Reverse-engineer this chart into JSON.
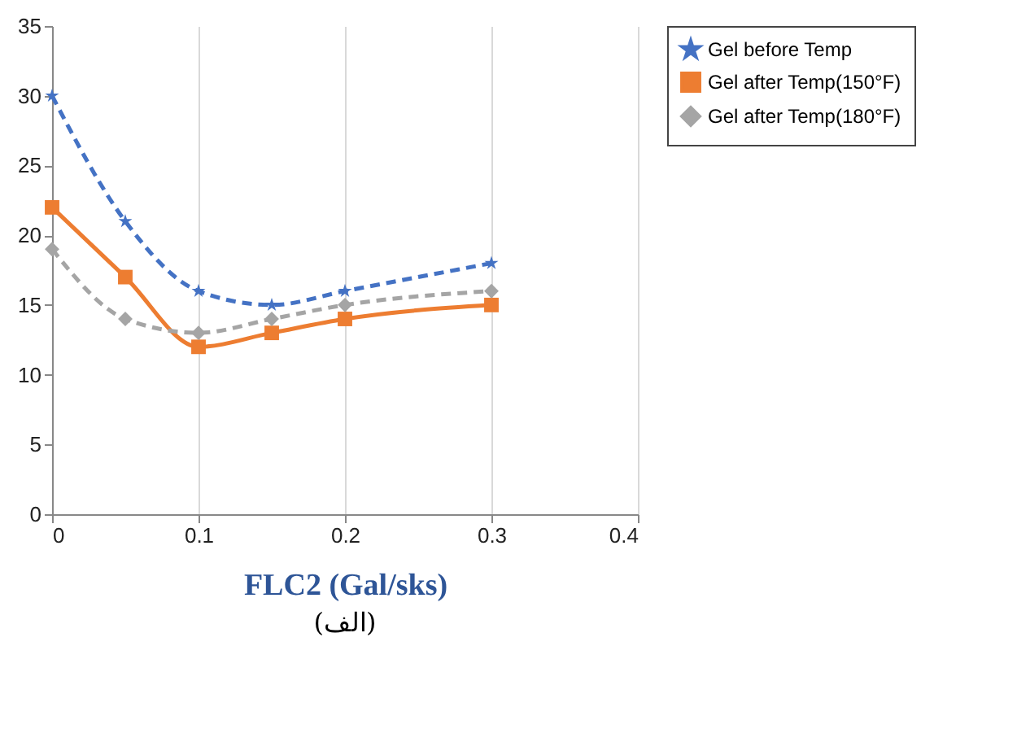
{
  "chart_data": {
    "type": "line",
    "xlabel": "FLC2 (Gal/sks)",
    "annotations": [
      "(الف)"
    ],
    "x": [
      0,
      0.05,
      0.1,
      0.15,
      0.2,
      0.3
    ],
    "series": [
      {
        "name": "Gel before Temp",
        "color": "#4472c4",
        "marker": "star",
        "line_style": "dashed",
        "values": [
          30,
          21,
          16,
          15,
          16,
          18
        ]
      },
      {
        "name": "Gel after Temp(150°F)",
        "color": "#ed7d31",
        "marker": "square",
        "line_style": "solid",
        "values": [
          22,
          17,
          12,
          13,
          14,
          15
        ]
      },
      {
        "name": "Gel after Temp(180°F)",
        "color": "#a5a5a5",
        "marker": "diamond",
        "line_style": "dashed",
        "values": [
          19,
          14,
          13,
          14,
          15,
          16
        ]
      }
    ],
    "xlim": [
      0,
      0.4
    ],
    "xticks": [
      0,
      0.1,
      0.2,
      0.3,
      0.4
    ],
    "ylim": [
      0,
      35
    ],
    "yticks": [
      0,
      5,
      10,
      15,
      20,
      25,
      30,
      35
    ],
    "grid": "x",
    "legend": "right"
  }
}
